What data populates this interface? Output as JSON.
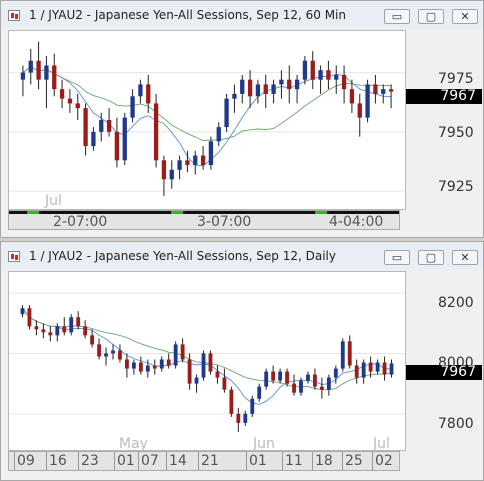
{
  "colors": {
    "up": "#1f3a8a",
    "down": "#9b1c1c",
    "ma_fast": "#5b8fd8",
    "ma_slow": "#6aa66a",
    "grid": "#e6e6e6"
  },
  "window1": {
    "title": "1 / JYAU2 - Japanese Yen-All Sessions, Sep 12, 60 Min",
    "price_labels": [
      "7975",
      "7950",
      "7925"
    ],
    "last_price": "7967",
    "month_label": "Jul",
    "time_labels": [
      "2-07:00",
      "3-07:00",
      "4-04:00"
    ]
  },
  "window2": {
    "title": "1 / JYAU2 - Japanese Yen-All Sessions, Sep 12, Daily",
    "price_labels": [
      "8200",
      "8000",
      "7800"
    ],
    "last_price": "7967",
    "month_labels": [
      "May",
      "Jun",
      "Jul"
    ],
    "time_labels": [
      "09",
      "16",
      "23",
      "01",
      "07",
      "14",
      "21",
      "01",
      "11",
      "18",
      "25",
      "02"
    ]
  },
  "buttons": {
    "minimize": "▭",
    "restore": "▢",
    "close": "✕"
  },
  "chart_data": [
    {
      "type": "candlestick",
      "name": "60 Min",
      "ylim": [
        7920,
        7990
      ],
      "candles": [
        [
          7972,
          7978,
          7965,
          7975
        ],
        [
          7975,
          7985,
          7970,
          7980
        ],
        [
          7980,
          7988,
          7968,
          7972
        ],
        [
          7972,
          7982,
          7960,
          7978
        ],
        [
          7978,
          7983,
          7965,
          7968
        ],
        [
          7968,
          7972,
          7960,
          7964
        ],
        [
          7964,
          7968,
          7958,
          7962
        ],
        [
          7962,
          7966,
          7955,
          7960
        ],
        [
          7960,
          7962,
          7940,
          7944
        ],
        [
          7944,
          7952,
          7942,
          7950
        ],
        [
          7950,
          7958,
          7946,
          7955
        ],
        [
          7955,
          7960,
          7948,
          7950
        ],
        [
          7950,
          7956,
          7935,
          7938
        ],
        [
          7938,
          7958,
          7936,
          7956
        ],
        [
          7956,
          7968,
          7954,
          7965
        ],
        [
          7965,
          7972,
          7962,
          7970
        ],
        [
          7970,
          7974,
          7958,
          7962
        ],
        [
          7962,
          7966,
          7935,
          7938
        ],
        [
          7938,
          7940,
          7923,
          7930
        ],
        [
          7930,
          7938,
          7926,
          7934
        ],
        [
          7934,
          7940,
          7930,
          7938
        ],
        [
          7938,
          7942,
          7933,
          7936
        ],
        [
          7936,
          7942,
          7932,
          7940
        ],
        [
          7940,
          7944,
          7934,
          7936
        ],
        [
          7936,
          7948,
          7934,
          7946
        ],
        [
          7946,
          7954,
          7944,
          7952
        ],
        [
          7952,
          7966,
          7950,
          7964
        ],
        [
          7964,
          7970,
          7958,
          7966
        ],
        [
          7966,
          7974,
          7962,
          7972
        ],
        [
          7972,
          7976,
          7960,
          7965
        ],
        [
          7965,
          7972,
          7962,
          7970
        ],
        [
          7970,
          7974,
          7960,
          7966
        ],
        [
          7966,
          7972,
          7962,
          7970
        ],
        [
          7970,
          7976,
          7964,
          7972
        ],
        [
          7972,
          7978,
          7962,
          7968
        ],
        [
          7968,
          7974,
          7962,
          7972
        ],
        [
          7972,
          7982,
          7970,
          7980
        ],
        [
          7980,
          7984,
          7968,
          7972
        ],
        [
          7972,
          7978,
          7966,
          7976
        ],
        [
          7976,
          7980,
          7968,
          7972
        ],
        [
          7972,
          7978,
          7966,
          7974
        ],
        [
          7974,
          7978,
          7962,
          7968
        ],
        [
          7968,
          7972,
          7958,
          7962
        ],
        [
          7962,
          7966,
          7948,
          7956
        ],
        [
          7956,
          7972,
          7954,
          7970
        ],
        [
          7970,
          7974,
          7962,
          7966
        ],
        [
          7966,
          7970,
          7962,
          7968
        ],
        [
          7968,
          7970,
          7960,
          7967
        ]
      ]
    },
    {
      "type": "candlestick",
      "name": "Daily",
      "ylim": [
        7700,
        8250
      ],
      "candles": [
        [
          8130,
          8160,
          8120,
          8150
        ],
        [
          8150,
          8160,
          8080,
          8090
        ],
        [
          8090,
          8110,
          8060,
          8080
        ],
        [
          8080,
          8100,
          8050,
          8070
        ],
        [
          8070,
          8090,
          8040,
          8060
        ],
        [
          8060,
          8100,
          8040,
          8090
        ],
        [
          8090,
          8120,
          8060,
          8070
        ],
        [
          8070,
          8130,
          8060,
          8120
        ],
        [
          8120,
          8140,
          8080,
          8090
        ],
        [
          8090,
          8110,
          8050,
          8060
        ],
        [
          8060,
          8080,
          8020,
          8030
        ],
        [
          8030,
          8050,
          7980,
          7990
        ],
        [
          7990,
          8020,
          7960,
          8000
        ],
        [
          8000,
          8030,
          7980,
          8010
        ],
        [
          8010,
          8030,
          7970,
          7980
        ],
        [
          7980,
          8000,
          7920,
          7950
        ],
        [
          7950,
          7980,
          7930,
          7970
        ],
        [
          7970,
          7990,
          7930,
          7940
        ],
        [
          7940,
          7980,
          7920,
          7960
        ],
        [
          7960,
          7980,
          7930,
          7950
        ],
        [
          7950,
          7990,
          7940,
          7980
        ],
        [
          7980,
          8000,
          7950,
          7960
        ],
        [
          7960,
          8040,
          7950,
          8030
        ],
        [
          8030,
          8050,
          7970,
          7980
        ],
        [
          7980,
          8000,
          7880,
          7900
        ],
        [
          7900,
          7930,
          7870,
          7920
        ],
        [
          7920,
          8010,
          7910,
          8000
        ],
        [
          8000,
          8010,
          7930,
          7940
        ],
        [
          7940,
          7960,
          7900,
          7920
        ],
        [
          7920,
          7950,
          7870,
          7880
        ],
        [
          7880,
          7890,
          7790,
          7800
        ],
        [
          7800,
          7820,
          7740,
          7770
        ],
        [
          7770,
          7810,
          7760,
          7800
        ],
        [
          7800,
          7860,
          7790,
          7850
        ],
        [
          7850,
          7900,
          7840,
          7890
        ],
        [
          7890,
          7950,
          7880,
          7940
        ],
        [
          7940,
          7960,
          7900,
          7910
        ],
        [
          7910,
          7950,
          7900,
          7940
        ],
        [
          7940,
          7950,
          7890,
          7900
        ],
        [
          7900,
          7930,
          7860,
          7870
        ],
        [
          7870,
          7920,
          7860,
          7910
        ],
        [
          7910,
          7940,
          7900,
          7930
        ],
        [
          7930,
          7950,
          7880,
          7890
        ],
        [
          7890,
          7920,
          7850,
          7880
        ],
        [
          7880,
          7930,
          7860,
          7920
        ],
        [
          7920,
          7960,
          7900,
          7950
        ],
        [
          7950,
          8050,
          7940,
          8040
        ],
        [
          8040,
          8060,
          7950,
          7960
        ],
        [
          7960,
          7980,
          7900,
          7920
        ],
        [
          7920,
          7980,
          7900,
          7970
        ],
        [
          7970,
          7990,
          7920,
          7940
        ],
        [
          7940,
          7980,
          7930,
          7970
        ],
        [
          7970,
          7990,
          7910,
          7930
        ],
        [
          7930,
          7980,
          7920,
          7967
        ]
      ]
    }
  ]
}
